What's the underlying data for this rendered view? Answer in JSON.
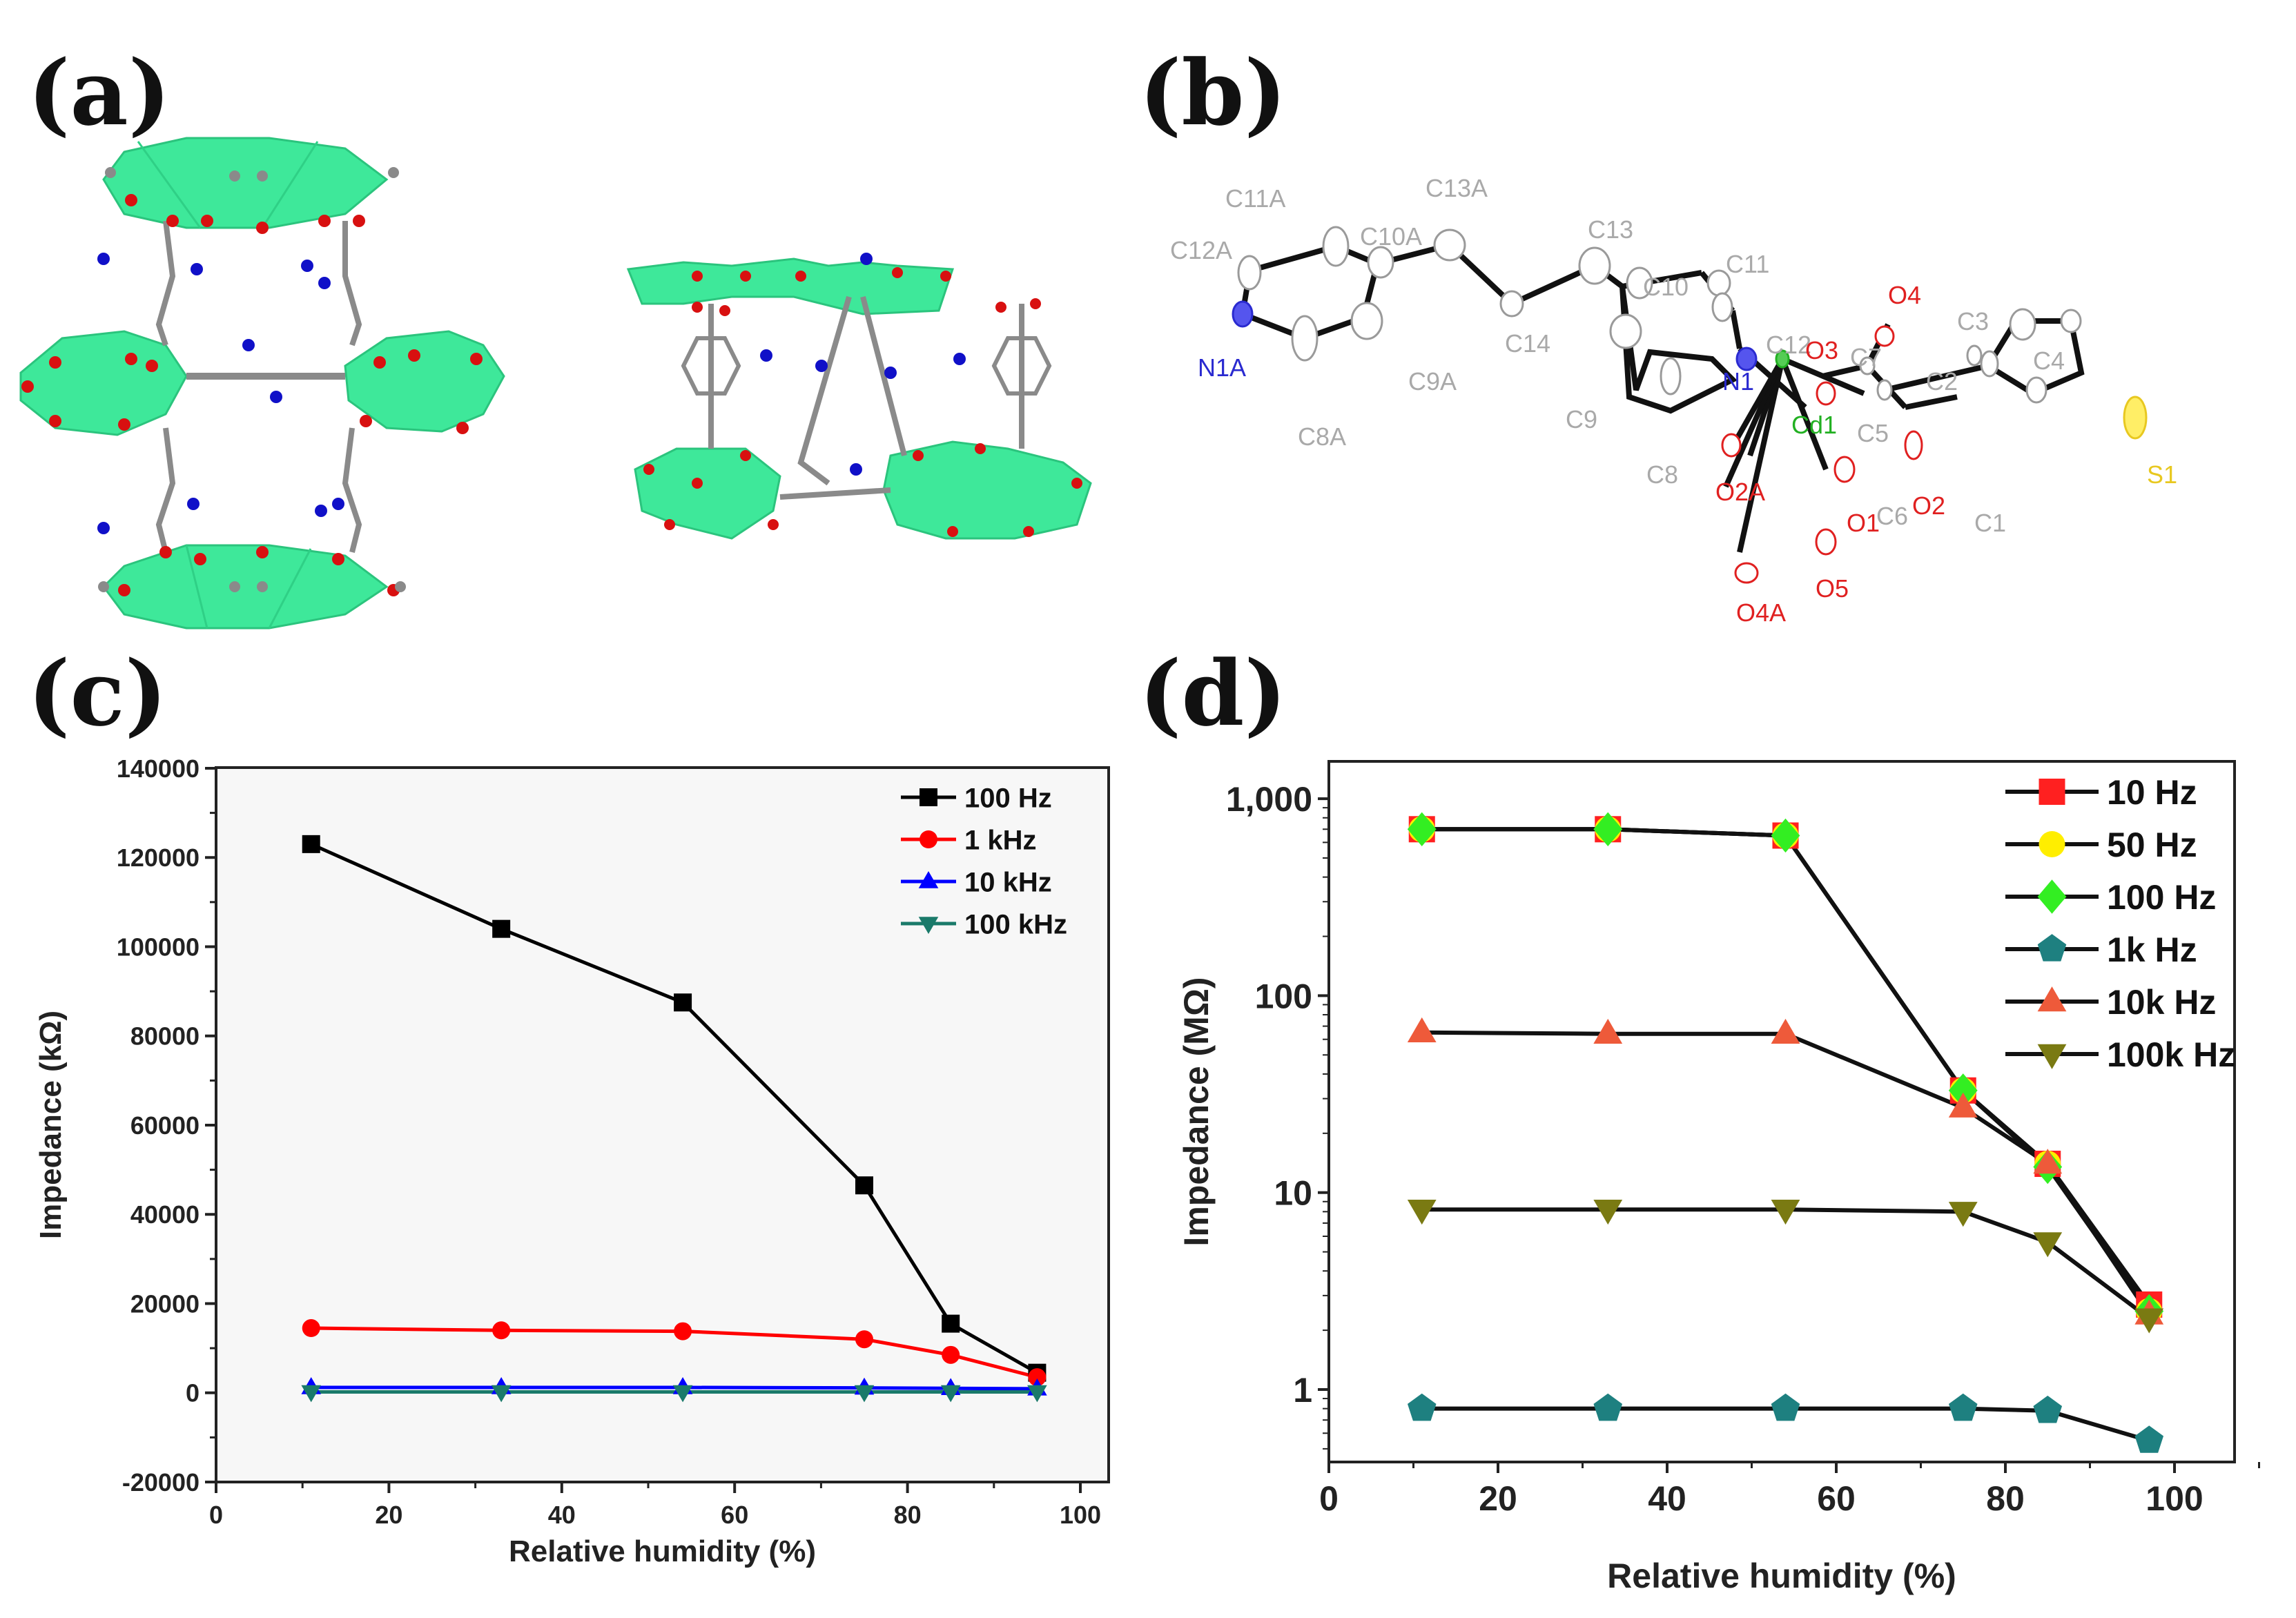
{
  "figure": {
    "panels": [
      {
        "id": "a",
        "label": "(a)",
        "type": "crystal-structure-packing"
      },
      {
        "id": "b",
        "label": "(b)",
        "type": "ortep-coordination-diagram"
      },
      {
        "id": "c",
        "label": "(c)"
      },
      {
        "id": "d",
        "label": "(d)"
      }
    ]
  },
  "panel_b": {
    "atoms": [
      {
        "name": "C12A",
        "element": "C"
      },
      {
        "name": "C11A",
        "element": "C"
      },
      {
        "name": "C10A",
        "element": "C"
      },
      {
        "name": "C13A",
        "element": "C"
      },
      {
        "name": "C13",
        "element": "C"
      },
      {
        "name": "C14",
        "element": "C"
      },
      {
        "name": "C10",
        "element": "C"
      },
      {
        "name": "C11",
        "element": "C"
      },
      {
        "name": "C12",
        "element": "C"
      },
      {
        "name": "N1A",
        "element": "N"
      },
      {
        "name": "C9A",
        "element": "C"
      },
      {
        "name": "C8A",
        "element": "C"
      },
      {
        "name": "C9",
        "element": "C"
      },
      {
        "name": "C8",
        "element": "C"
      },
      {
        "name": "N1",
        "element": "N"
      },
      {
        "name": "Cd1",
        "element": "Cd"
      },
      {
        "name": "O2A",
        "element": "O"
      },
      {
        "name": "O4A",
        "element": "O"
      },
      {
        "name": "O5",
        "element": "O"
      },
      {
        "name": "O1",
        "element": "O"
      },
      {
        "name": "O3",
        "element": "O"
      },
      {
        "name": "O4",
        "element": "O"
      },
      {
        "name": "C7",
        "element": "C"
      },
      {
        "name": "C5",
        "element": "C"
      },
      {
        "name": "C6",
        "element": "C"
      },
      {
        "name": "O2",
        "element": "O"
      },
      {
        "name": "C2",
        "element": "C"
      },
      {
        "name": "C3",
        "element": "C"
      },
      {
        "name": "C4",
        "element": "C"
      },
      {
        "name": "C1",
        "element": "C"
      },
      {
        "name": "S1",
        "element": "S"
      }
    ],
    "element_colors": {
      "C": "#a9a9a9",
      "N": "#2a2ad0",
      "O": "#e02020",
      "Cd": "#22b022",
      "S": "#e8c820"
    }
  },
  "colors": {
    "polyhedra": "#3ee89a",
    "carbon": "#8a8a8a",
    "oxygen": "#d81010",
    "nitrogen": "#1010c8"
  },
  "chart_data": [
    {
      "panel": "c",
      "type": "line",
      "title": "",
      "xlabel": "Relative humidity (%)",
      "ylabel": "Impedance (kΩ)",
      "xlim": [
        0,
        105
      ],
      "ylim": [
        -20000,
        140000
      ],
      "xticks": [
        "0",
        "20",
        "40",
        "60",
        "80",
        "100"
      ],
      "yticks": [
        "-20000",
        "0",
        "20000",
        "40000",
        "60000",
        "80000",
        "100000",
        "120000",
        "140000"
      ],
      "grid": false,
      "legend_position": "upper right",
      "x": [
        11,
        33,
        54,
        75,
        85,
        95
      ],
      "series": [
        {
          "name": "100 Hz",
          "color": "#000000",
          "marker": "square",
          "values": [
            123000,
            104000,
            87500,
            46500,
            15500,
            4500
          ]
        },
        {
          "name": "1 kHz",
          "color": "#ff0000",
          "marker": "circle",
          "values": [
            14500,
            14000,
            13800,
            12000,
            8500,
            3500
          ]
        },
        {
          "name": "10 kHz",
          "color": "#0000ff",
          "marker": "triangle-up",
          "values": [
            1200,
            1200,
            1200,
            1100,
            1000,
            900
          ]
        },
        {
          "name": "100 kHz",
          "color": "#1a7a6a",
          "marker": "triangle-down",
          "values": [
            200,
            200,
            200,
            200,
            200,
            200
          ]
        }
      ]
    },
    {
      "panel": "d",
      "type": "line",
      "yscale": "log",
      "title": "",
      "xlabel": "Relative humidity (%)",
      "ylabel": "Impedance (MΩ)",
      "xlim": [
        0,
        110
      ],
      "ylim": [
        0.4,
        1500
      ],
      "xticks": [
        "0",
        "20",
        "40",
        "60",
        "80",
        "100"
      ],
      "yticks": [
        "1",
        "10",
        "100",
        "1,000"
      ],
      "grid": false,
      "legend_position": "upper right",
      "x": [
        11,
        33,
        54,
        75,
        85,
        97
      ],
      "series": [
        {
          "name": "10 Hz",
          "color": "#ff2020",
          "marker": "square",
          "values": [
            700,
            700,
            650,
            33,
            14,
            2.7
          ]
        },
        {
          "name": "50 Hz",
          "color": "#ffee00",
          "marker": "circle",
          "values": [
            700,
            700,
            650,
            33,
            14,
            2.5
          ]
        },
        {
          "name": "100 Hz",
          "color": "#33ee22",
          "marker": "diamond",
          "values": [
            700,
            700,
            650,
            33,
            13.5,
            2.5
          ]
        },
        {
          "name": "1k Hz",
          "color": "#1e8080",
          "marker": "pentagon",
          "values": [
            0.8,
            0.8,
            0.8,
            0.8,
            0.78,
            0.55
          ]
        },
        {
          "name": "10k Hz",
          "color": "#ee5a3a",
          "marker": "triangle-up",
          "values": [
            65,
            64,
            64,
            27,
            14,
            2.4
          ]
        },
        {
          "name": "100k Hz",
          "color": "#7a7a12",
          "marker": "triangle-down",
          "values": [
            8.2,
            8.2,
            8.2,
            8.0,
            5.6,
            2.3
          ]
        }
      ]
    }
  ]
}
